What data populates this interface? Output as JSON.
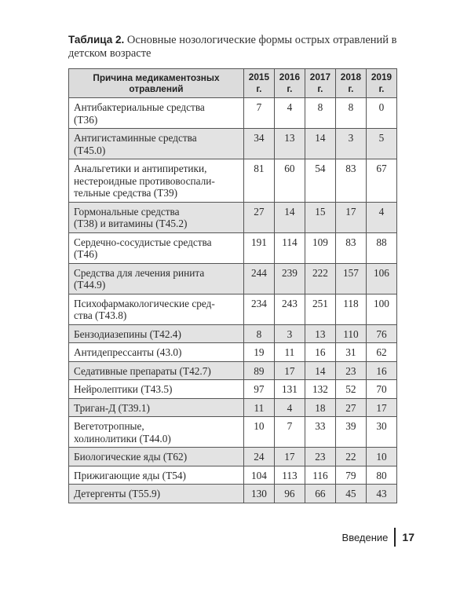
{
  "caption": {
    "label": "Таблица 2.",
    "text": " Основные нозологические формы острых отравлений в детском возрасте"
  },
  "table": {
    "headers": [
      "Причина медикаментозных отравлений",
      "2015 г.",
      "2016 г.",
      "2017 г.",
      "2018 г.",
      "2019 г."
    ],
    "rows": [
      {
        "cause": "Антибактериальные средства\n(Т36)",
        "values": [
          "7",
          "4",
          "8",
          "8",
          "0"
        ]
      },
      {
        "cause": "Антигистаминные средства\n(Т45.0)",
        "values": [
          "34",
          "13",
          "14",
          "3",
          "5"
        ]
      },
      {
        "cause": "Анальгетики и антипиретики,\nнестероидные противовоспали-\nтельные средства (Т39)",
        "values": [
          "81",
          "60",
          "54",
          "83",
          "67"
        ]
      },
      {
        "cause": "Гормональные средства\n(Т38) и витамины (Т45.2)",
        "values": [
          "27",
          "14",
          "15",
          "17",
          "4"
        ]
      },
      {
        "cause": "Сердечно-сосудистые средства\n(Т46)",
        "values": [
          "191",
          "114",
          "109",
          "83",
          "88"
        ]
      },
      {
        "cause": "Средства для лечения ринита\n(Т44.9)",
        "values": [
          "244",
          "239",
          "222",
          "157",
          "106"
        ]
      },
      {
        "cause": "Психофармакологические сред-\nства (Т43.8)",
        "values": [
          "234",
          "243",
          "251",
          "118",
          "100"
        ]
      },
      {
        "cause": "Бензодиазепины (Т42.4)",
        "values": [
          "8",
          "3",
          "13",
          "110",
          "76"
        ]
      },
      {
        "cause": "Антидепрессанты (43.0)",
        "values": [
          "19",
          "11",
          "16",
          "31",
          "62"
        ]
      },
      {
        "cause": "Седативные препараты (Т42.7)",
        "values": [
          "89",
          "17",
          "14",
          "23",
          "16"
        ]
      },
      {
        "cause": "Нейролептики (Т43.5)",
        "values": [
          "97",
          "131",
          "132",
          "52",
          "70"
        ]
      },
      {
        "cause": "Триган-Д (Т39.1)",
        "values": [
          "11",
          "4",
          "18",
          "27",
          "17"
        ]
      },
      {
        "cause": "Вегетотропные,\nхолинолитики (Т44.0)",
        "values": [
          "10",
          "7",
          "33",
          "39",
          "30"
        ]
      },
      {
        "cause": "Биологические яды (Т62)",
        "values": [
          "24",
          "17",
          "23",
          "22",
          "10"
        ]
      },
      {
        "cause": "Прижигающие яды (Т54)",
        "values": [
          "104",
          "113",
          "116",
          "79",
          "80"
        ]
      },
      {
        "cause": "Детергенты (Т55.9)",
        "values": [
          "130",
          "96",
          "66",
          "45",
          "43"
        ]
      }
    ]
  },
  "footer": {
    "section": "Введение",
    "page": "17"
  }
}
